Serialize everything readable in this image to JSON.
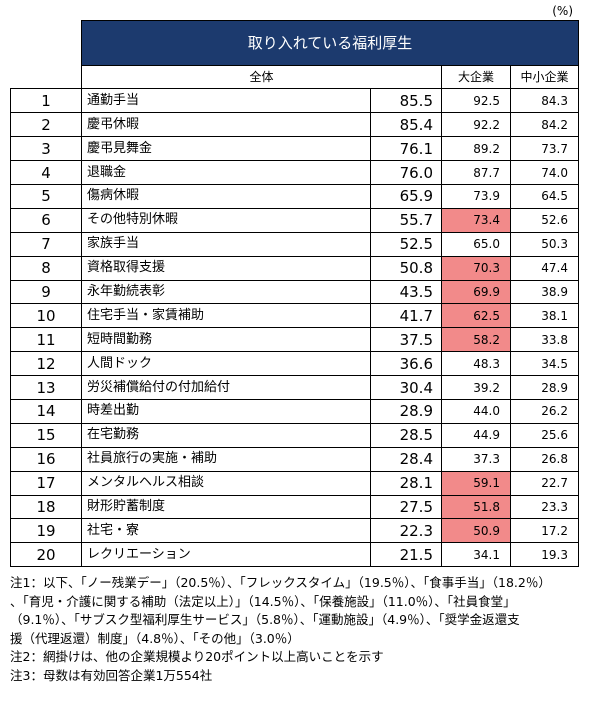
{
  "unit_label": "(%)",
  "table_title": "取り入れている福利厚生",
  "headers": {
    "all": "全体",
    "large": "大企業",
    "sme": "中小企業"
  },
  "highlight_color": "#f28a8a",
  "header_bg_color": "#1c3a6e",
  "chart_data": {
    "type": "table",
    "columns": [
      "全体",
      "大企業",
      "中小企業"
    ],
    "rows": [
      {
        "rank": "1",
        "item": "通勤手当",
        "all": "85.5",
        "large": "92.5",
        "sme": "84.3",
        "large_highlighted": false
      },
      {
        "rank": "2",
        "item": "慶弔休暇",
        "all": "85.4",
        "large": "92.2",
        "sme": "84.2",
        "large_highlighted": false
      },
      {
        "rank": "3",
        "item": "慶弔見舞金",
        "all": "76.1",
        "large": "89.2",
        "sme": "73.7",
        "large_highlighted": false
      },
      {
        "rank": "4",
        "item": "退職金",
        "all": "76.0",
        "large": "87.7",
        "sme": "74.0",
        "large_highlighted": false
      },
      {
        "rank": "5",
        "item": "傷病休暇",
        "all": "65.9",
        "large": "73.9",
        "sme": "64.5",
        "large_highlighted": false
      },
      {
        "rank": "6",
        "item": "その他特別休暇",
        "all": "55.7",
        "large": "73.4",
        "sme": "52.6",
        "large_highlighted": true
      },
      {
        "rank": "7",
        "item": "家族手当",
        "all": "52.5",
        "large": "65.0",
        "sme": "50.3",
        "large_highlighted": false
      },
      {
        "rank": "8",
        "item": "資格取得支援",
        "all": "50.8",
        "large": "70.3",
        "sme": "47.4",
        "large_highlighted": true
      },
      {
        "rank": "9",
        "item": "永年勤続表彰",
        "all": "43.5",
        "large": "69.9",
        "sme": "38.9",
        "large_highlighted": true
      },
      {
        "rank": "10",
        "item": "住宅手当・家賃補助",
        "all": "41.7",
        "large": "62.5",
        "sme": "38.1",
        "large_highlighted": true
      },
      {
        "rank": "11",
        "item": "短時間勤務",
        "all": "37.5",
        "large": "58.2",
        "sme": "33.8",
        "large_highlighted": true
      },
      {
        "rank": "12",
        "item": "人間ドック",
        "all": "36.6",
        "large": "48.3",
        "sme": "34.5",
        "large_highlighted": false
      },
      {
        "rank": "13",
        "item": "労災補償給付の付加給付",
        "all": "30.4",
        "large": "39.2",
        "sme": "28.9",
        "large_highlighted": false
      },
      {
        "rank": "14",
        "item": "時差出勤",
        "all": "28.9",
        "large": "44.0",
        "sme": "26.2",
        "large_highlighted": false
      },
      {
        "rank": "15",
        "item": "在宅勤務",
        "all": "28.5",
        "large": "44.9",
        "sme": "25.6",
        "large_highlighted": false
      },
      {
        "rank": "16",
        "item": "社員旅行の実施・補助",
        "all": "28.4",
        "large": "37.3",
        "sme": "26.8",
        "large_highlighted": false
      },
      {
        "rank": "17",
        "item": "メンタルヘルス相談",
        "all": "28.1",
        "large": "59.1",
        "sme": "22.7",
        "large_highlighted": true
      },
      {
        "rank": "18",
        "item": "財形貯蓄制度",
        "all": "27.5",
        "large": "51.8",
        "sme": "23.3",
        "large_highlighted": true
      },
      {
        "rank": "19",
        "item": "社宅・寮",
        "all": "22.3",
        "large": "50.9",
        "sme": "17.2",
        "large_highlighted": true
      },
      {
        "rank": "20",
        "item": "レクリエーション",
        "all": "21.5",
        "large": "34.1",
        "sme": "19.3",
        "large_highlighted": false
      }
    ]
  },
  "notes": [
    "注1：以下、「ノー残業デー」（20.5％）、「フレックスタイム」（19.5％）、「食事手当」（18.2％）",
    "、「育児・介護に関する補助（法定以上）」（14.5％）、「保養施設」（11.0％）、「社員食堂」",
    "（9.1％）、「サブスク型福利厚生サービス」（5.8％）、「運動施設」（4.9％）、「奨学金返還支",
    "援（代理返還）制度」（4.8％）、「その他」（3.0％）",
    "注2：網掛けは、他の企業規模より20ポイント以上高いことを示す",
    "注3：母数は有効回答企業1万554社"
  ]
}
